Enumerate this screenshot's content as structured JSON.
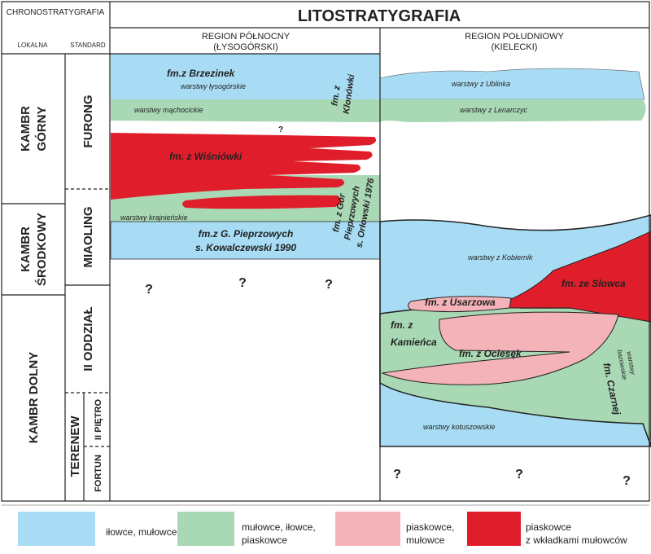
{
  "header": {
    "chrono": "CHRONOSTRATYGRAFIA",
    "local": "LOKALNA",
    "standard": "STANDARD",
    "litho": "LITOSTRATYGRAFIA"
  },
  "regions": [
    {
      "name": "REGION PÓŁNOCNY",
      "sub": "(ŁYSOGÓRSKI)"
    },
    {
      "name": "REGION POŁUDNIOWY",
      "sub": "(KIELECKI)"
    }
  ],
  "local_units": [
    {
      "lines": [
        "KAMBR",
        "GÓRNY"
      ]
    },
    {
      "lines": [
        "KAMBR",
        "ŚRODKOWY"
      ]
    },
    {
      "lines": [
        "KAMBR DOLNY"
      ]
    }
  ],
  "standard_units": [
    "FURONG",
    "MIAOLING",
    "II ODDZIAŁ",
    "TERENEW",
    "II PIĘTRO",
    "FORTUN"
  ],
  "north": {
    "brzezinek": "fm.z Brzezinek",
    "lysogorskie": "warstwy łysogórskie",
    "machocickie": "warstwy mąchocickie",
    "klonowki": [
      "fm. z",
      "Klonówki"
    ],
    "wisniowki": "fm. z Wiśniówki",
    "krajnienskie": "warstwy krajnieńskie",
    "pieprzowych": [
      "fm.z G. Pieprzowych",
      "s. Kowalczewski 1990"
    ],
    "gor": [
      "fm. z Gór",
      "Pieprzowych",
      "s. Orłowski 1976"
    ]
  },
  "south": {
    "ublinka": "warstwy z Ublinka",
    "lenarczyc": "warstwy z Lenarczyc",
    "kobiernik": "warstwy z Kobiernik",
    "slowca": "fm. ze Słowca",
    "usarzowa": "fm. z Usarzowa",
    "kamienca": [
      "fm. z",
      "Kamieńca"
    ],
    "ociesek": "fm. z Ociesęk",
    "bazowskie": [
      "warstwy",
      "bazowskie"
    ],
    "czarnej": "fm. Czarnej",
    "kotuszowskie": "warstwy kotuszowskie"
  },
  "question_marks": [
    "?",
    "?",
    "?",
    "?",
    "?",
    "?",
    "?"
  ],
  "legend": [
    {
      "lines": [
        "iłowce, mułowce"
      ]
    },
    {
      "lines": [
        "mułowce, iłowce,",
        "piaskowce"
      ]
    },
    {
      "lines": [
        "piaskowce,",
        "mułowce"
      ]
    },
    {
      "lines": [
        "piaskowce",
        "z wkładkami mułowców"
      ]
    }
  ]
}
